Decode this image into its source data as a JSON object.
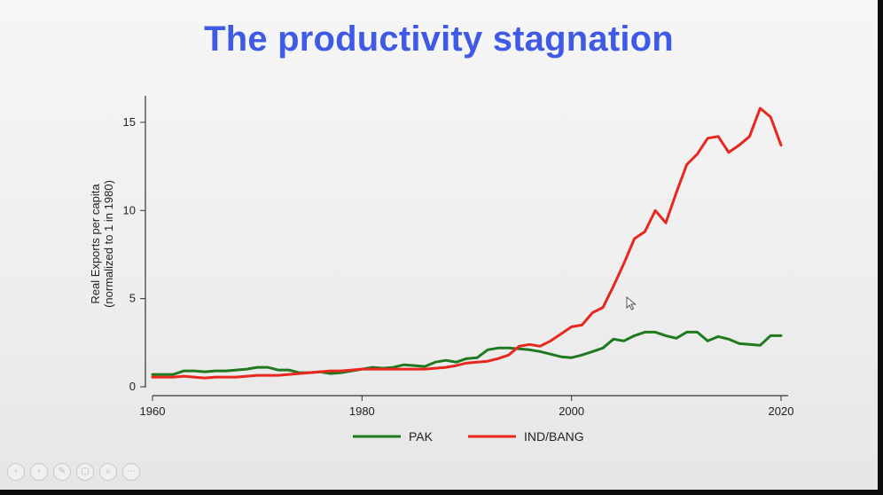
{
  "title": "The productivity stagnation",
  "chart_data": {
    "type": "line",
    "title": "The productivity stagnation",
    "xlabel": "",
    "ylabel": [
      "Real Exports per capita",
      "(normalized to 1 in 1980)"
    ],
    "xlim": [
      1960,
      2020
    ],
    "ylim": [
      0,
      16
    ],
    "xticks": [
      1960,
      1980,
      2000,
      2020
    ],
    "yticks": [
      0,
      5,
      10,
      15
    ],
    "grid": false,
    "legend_position": "bottom",
    "x": [
      1960,
      1961,
      1962,
      1963,
      1964,
      1965,
      1966,
      1967,
      1968,
      1969,
      1970,
      1971,
      1972,
      1973,
      1974,
      1975,
      1976,
      1977,
      1978,
      1979,
      1980,
      1981,
      1982,
      1983,
      1984,
      1985,
      1986,
      1987,
      1988,
      1989,
      1990,
      1991,
      1992,
      1993,
      1994,
      1995,
      1996,
      1997,
      1998,
      1999,
      2000,
      2001,
      2002,
      2003,
      2004,
      2005,
      2006,
      2007,
      2008,
      2009,
      2010,
      2011,
      2012,
      2013,
      2014,
      2015,
      2016,
      2017,
      2018,
      2019,
      2020
    ],
    "series": [
      {
        "name": "PAK",
        "color": "#1f7a1f",
        "values": [
          0.7,
          0.7,
          0.7,
          0.9,
          0.9,
          0.85,
          0.9,
          0.9,
          0.95,
          1.0,
          1.1,
          1.1,
          0.95,
          0.95,
          0.8,
          0.8,
          0.85,
          0.75,
          0.8,
          0.9,
          1.0,
          1.1,
          1.05,
          1.1,
          1.25,
          1.2,
          1.15,
          1.4,
          1.5,
          1.4,
          1.6,
          1.65,
          2.1,
          2.2,
          2.2,
          2.15,
          2.1,
          2.0,
          1.85,
          1.7,
          1.65,
          1.8,
          2.0,
          2.2,
          2.7,
          2.6,
          2.9,
          3.1,
          3.1,
          2.9,
          2.75,
          3.1,
          3.1,
          2.6,
          2.85,
          2.7,
          2.45,
          2.4,
          2.35,
          2.9,
          2.9
        ]
      },
      {
        "name": "IND/BANG",
        "color": "#e8281e",
        "values": [
          0.55,
          0.55,
          0.55,
          0.6,
          0.55,
          0.5,
          0.55,
          0.55,
          0.55,
          0.6,
          0.65,
          0.65,
          0.65,
          0.7,
          0.75,
          0.8,
          0.85,
          0.9,
          0.9,
          0.95,
          1.0,
          1.0,
          1.0,
          1.0,
          1.0,
          1.0,
          1.0,
          1.05,
          1.1,
          1.2,
          1.35,
          1.4,
          1.45,
          1.6,
          1.8,
          2.3,
          2.4,
          2.3,
          2.6,
          3.0,
          3.4,
          3.5,
          4.2,
          4.5,
          5.7,
          7.0,
          8.4,
          8.8,
          10.0,
          9.3,
          11.0,
          12.6,
          13.2,
          14.1,
          14.2,
          13.3,
          13.7,
          14.2,
          15.8,
          15.3,
          13.7
        ]
      }
    ]
  },
  "toolbar_icons": [
    "back-icon",
    "forward-icon",
    "pen-icon",
    "screen-icon",
    "zoom-icon",
    "more-icon"
  ]
}
